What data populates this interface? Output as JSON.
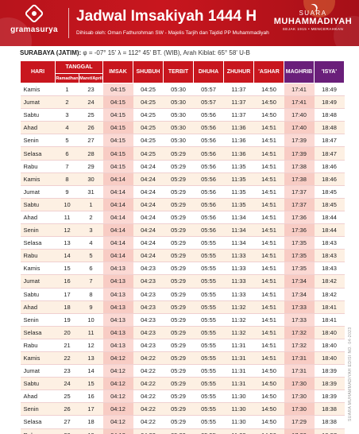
{
  "header": {
    "logo_left": "gramasurya",
    "title": "Jadwal Imsakiyah 1444 H",
    "subtitle": "Dihisab oleh: Oman Fathurohman SW - Majelis Tarjih dan Tajdid PP Muhammadiyah",
    "logo_right_top": "SUARA",
    "logo_right_main": "MUHAMMADIYAH",
    "logo_right_sub": "SEJAK 1915 • MENCERAHKAN",
    "accent_color": "#c8161e",
    "purple_color": "#6a1f7a"
  },
  "location": {
    "city": "SURABAYA (JATIM):",
    "coords": " φ = -07° 15'  λ = 112° 45'  BT. (WIB), Arah Kiblat: 65° 58'  U-B"
  },
  "columns": {
    "hari": "HARI",
    "tanggal": "TANGGAL",
    "ramadhan": "Ramadhan",
    "maret_april": "Maret/April",
    "imsak": "IMSAK",
    "shubuh": "SHUBUH",
    "terbit": "TERBIT",
    "dhuha": "DHUHA",
    "zhuhur": "ZHUHUR",
    "ashar": "'ASHAR",
    "maghrib": "MAGHRIB",
    "isya": "'ISYA'"
  },
  "rows": [
    [
      "Kamis",
      "1",
      "23",
      "04:15",
      "04:25",
      "05:30",
      "05:57",
      "11:37",
      "14:50",
      "17:41",
      "18:49"
    ],
    [
      "Jumat",
      "2",
      "24",
      "04:15",
      "04:25",
      "05:30",
      "05:57",
      "11:37",
      "14:50",
      "17:41",
      "18:49"
    ],
    [
      "Sabtu",
      "3",
      "25",
      "04:15",
      "04:25",
      "05:30",
      "05:56",
      "11:37",
      "14:50",
      "17:40",
      "18:48"
    ],
    [
      "Ahad",
      "4",
      "26",
      "04:15",
      "04:25",
      "05:30",
      "05:56",
      "11:36",
      "14:51",
      "17:40",
      "18:48"
    ],
    [
      "Senin",
      "5",
      "27",
      "04:15",
      "04:25",
      "05:30",
      "05:56",
      "11:36",
      "14:51",
      "17:39",
      "18:47"
    ],
    [
      "Selasa",
      "6",
      "28",
      "04:15",
      "04:25",
      "05:29",
      "05:56",
      "11:36",
      "14:51",
      "17:39",
      "18:47"
    ],
    [
      "Rabu",
      "7",
      "29",
      "04:15",
      "04:24",
      "05:29",
      "05:56",
      "11:35",
      "14:51",
      "17:38",
      "18:46"
    ],
    [
      "Kamis",
      "8",
      "30",
      "04:14",
      "04:24",
      "05:29",
      "05:56",
      "11:35",
      "14:51",
      "17:38",
      "18:46"
    ],
    [
      "Jumat",
      "9",
      "31",
      "04:14",
      "04:24",
      "05:29",
      "05:56",
      "11:35",
      "14:51",
      "17:37",
      "18:45"
    ],
    [
      "Sabtu",
      "10",
      "1",
      "04:14",
      "04:24",
      "05:29",
      "05:56",
      "11:35",
      "14:51",
      "17:37",
      "18:45"
    ],
    [
      "Ahad",
      "11",
      "2",
      "04:14",
      "04:24",
      "05:29",
      "05:56",
      "11:34",
      "14:51",
      "17:36",
      "18:44"
    ],
    [
      "Senin",
      "12",
      "3",
      "04:14",
      "04:24",
      "05:29",
      "05:56",
      "11:34",
      "14:51",
      "17:36",
      "18:44"
    ],
    [
      "Selasa",
      "13",
      "4",
      "04:14",
      "04:24",
      "05:29",
      "05:55",
      "11:34",
      "14:51",
      "17:35",
      "18:43"
    ],
    [
      "Rabu",
      "14",
      "5",
      "04:14",
      "04:24",
      "05:29",
      "05:55",
      "11:33",
      "14:51",
      "17:35",
      "18:43"
    ],
    [
      "Kamis",
      "15",
      "6",
      "04:13",
      "04:23",
      "05:29",
      "05:55",
      "11:33",
      "14:51",
      "17:35",
      "18:43"
    ],
    [
      "Jumat",
      "16",
      "7",
      "04:13",
      "04:23",
      "05:29",
      "05:55",
      "11:33",
      "14:51",
      "17:34",
      "18:42"
    ],
    [
      "Sabtu",
      "17",
      "8",
      "04:13",
      "04:23",
      "05:29",
      "05:55",
      "11:33",
      "14:51",
      "17:34",
      "18:42"
    ],
    [
      "Ahad",
      "18",
      "9",
      "04:13",
      "04:23",
      "05:29",
      "05:55",
      "11:32",
      "14:51",
      "17:33",
      "18:41"
    ],
    [
      "Senin",
      "19",
      "10",
      "04:13",
      "04:23",
      "05:29",
      "05:55",
      "11:32",
      "14:51",
      "17:33",
      "18:41"
    ],
    [
      "Selasa",
      "20",
      "11",
      "04:13",
      "04:23",
      "05:29",
      "05:55",
      "11:32",
      "14:51",
      "17:32",
      "18:40"
    ],
    [
      "Rabu",
      "21",
      "12",
      "04:13",
      "04:23",
      "05:29",
      "05:55",
      "11:31",
      "14:51",
      "17:32",
      "18:40"
    ],
    [
      "Kamis",
      "22",
      "13",
      "04:12",
      "04:22",
      "05:29",
      "05:55",
      "11:31",
      "14:51",
      "17:31",
      "18:40"
    ],
    [
      "Jumat",
      "23",
      "14",
      "04:12",
      "04:22",
      "05:29",
      "05:55",
      "11:31",
      "14:50",
      "17:31",
      "18:39"
    ],
    [
      "Sabtu",
      "24",
      "15",
      "04:12",
      "04:22",
      "05:29",
      "05:55",
      "11:31",
      "14:50",
      "17:30",
      "18:39"
    ],
    [
      "Ahad",
      "25",
      "16",
      "04:12",
      "04:22",
      "05:29",
      "05:55",
      "11:30",
      "14:50",
      "17:30",
      "18:39"
    ],
    [
      "Senin",
      "26",
      "17",
      "04:12",
      "04:22",
      "05:29",
      "05:55",
      "11:30",
      "14:50",
      "17:30",
      "18:38"
    ],
    [
      "Selasa",
      "27",
      "18",
      "04:12",
      "04:22",
      "05:29",
      "05:55",
      "11:30",
      "14:50",
      "17:29",
      "18:38"
    ],
    [
      "Rabu",
      "28",
      "19",
      "04:12",
      "04:22",
      "05:29",
      "05:55",
      "11:30",
      "14:50",
      "17:29",
      "18:37"
    ],
    [
      "Kamis",
      "29",
      "20",
      "04:12",
      "04:22",
      "05:29",
      "05:55",
      "11:29",
      "14:50",
      "17:28",
      "18:37"
    ]
  ],
  "side_note": "SUARA MUHAMMADIYAH EDISI NO. 04-2023"
}
